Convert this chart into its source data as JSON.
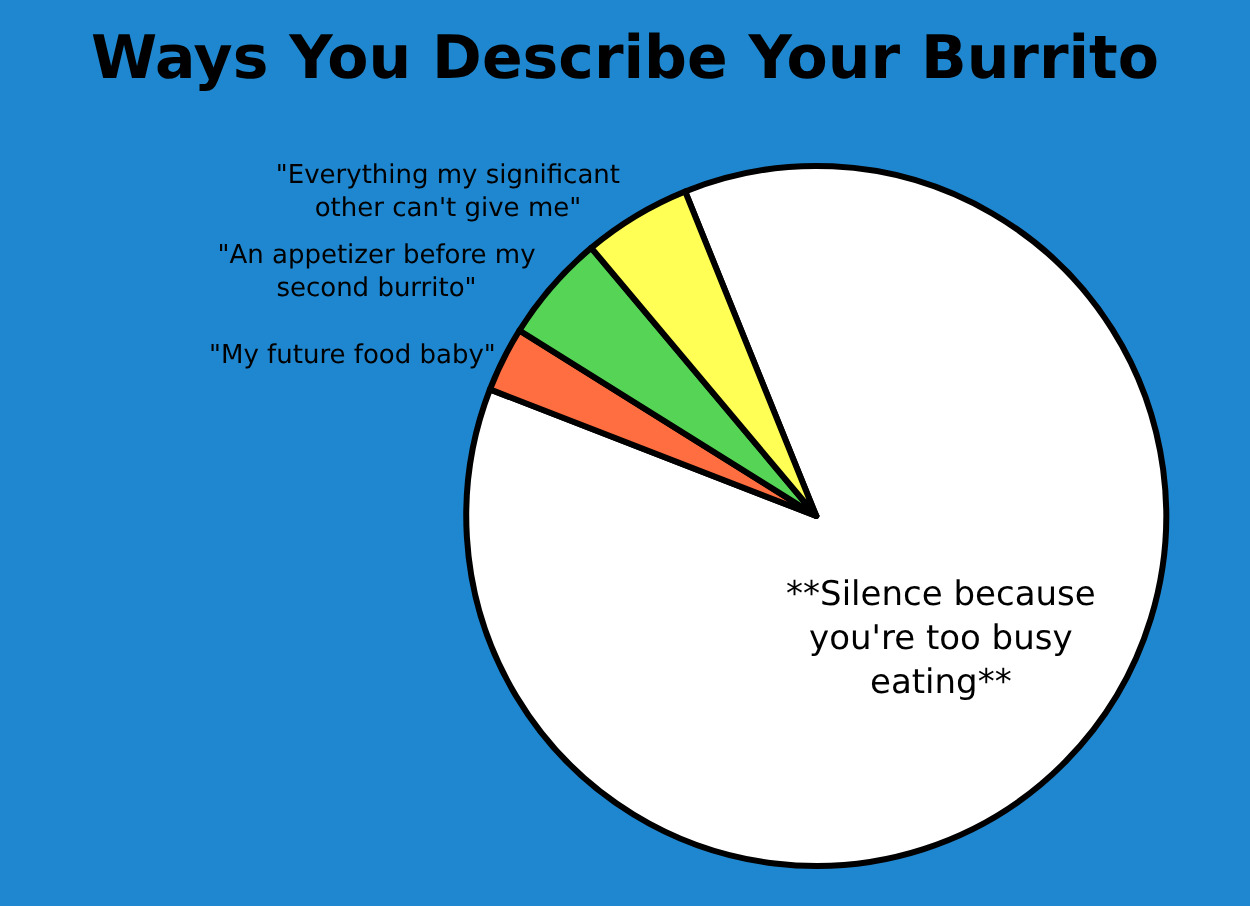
{
  "chart_data": {
    "type": "pie",
    "title": "Ways You Describe Your Burrito",
    "categories": [
      "**Silence because you're too busy eating**",
      "\"My future food baby\"",
      "\"An appetizer before my second burrito\"",
      "\"Everything my significant other can't give me\""
    ],
    "values": [
      87,
      3,
      5,
      5
    ],
    "colors": [
      "#ffffff",
      "#ff6e40",
      "#55d455",
      "#ffff55"
    ]
  }
}
